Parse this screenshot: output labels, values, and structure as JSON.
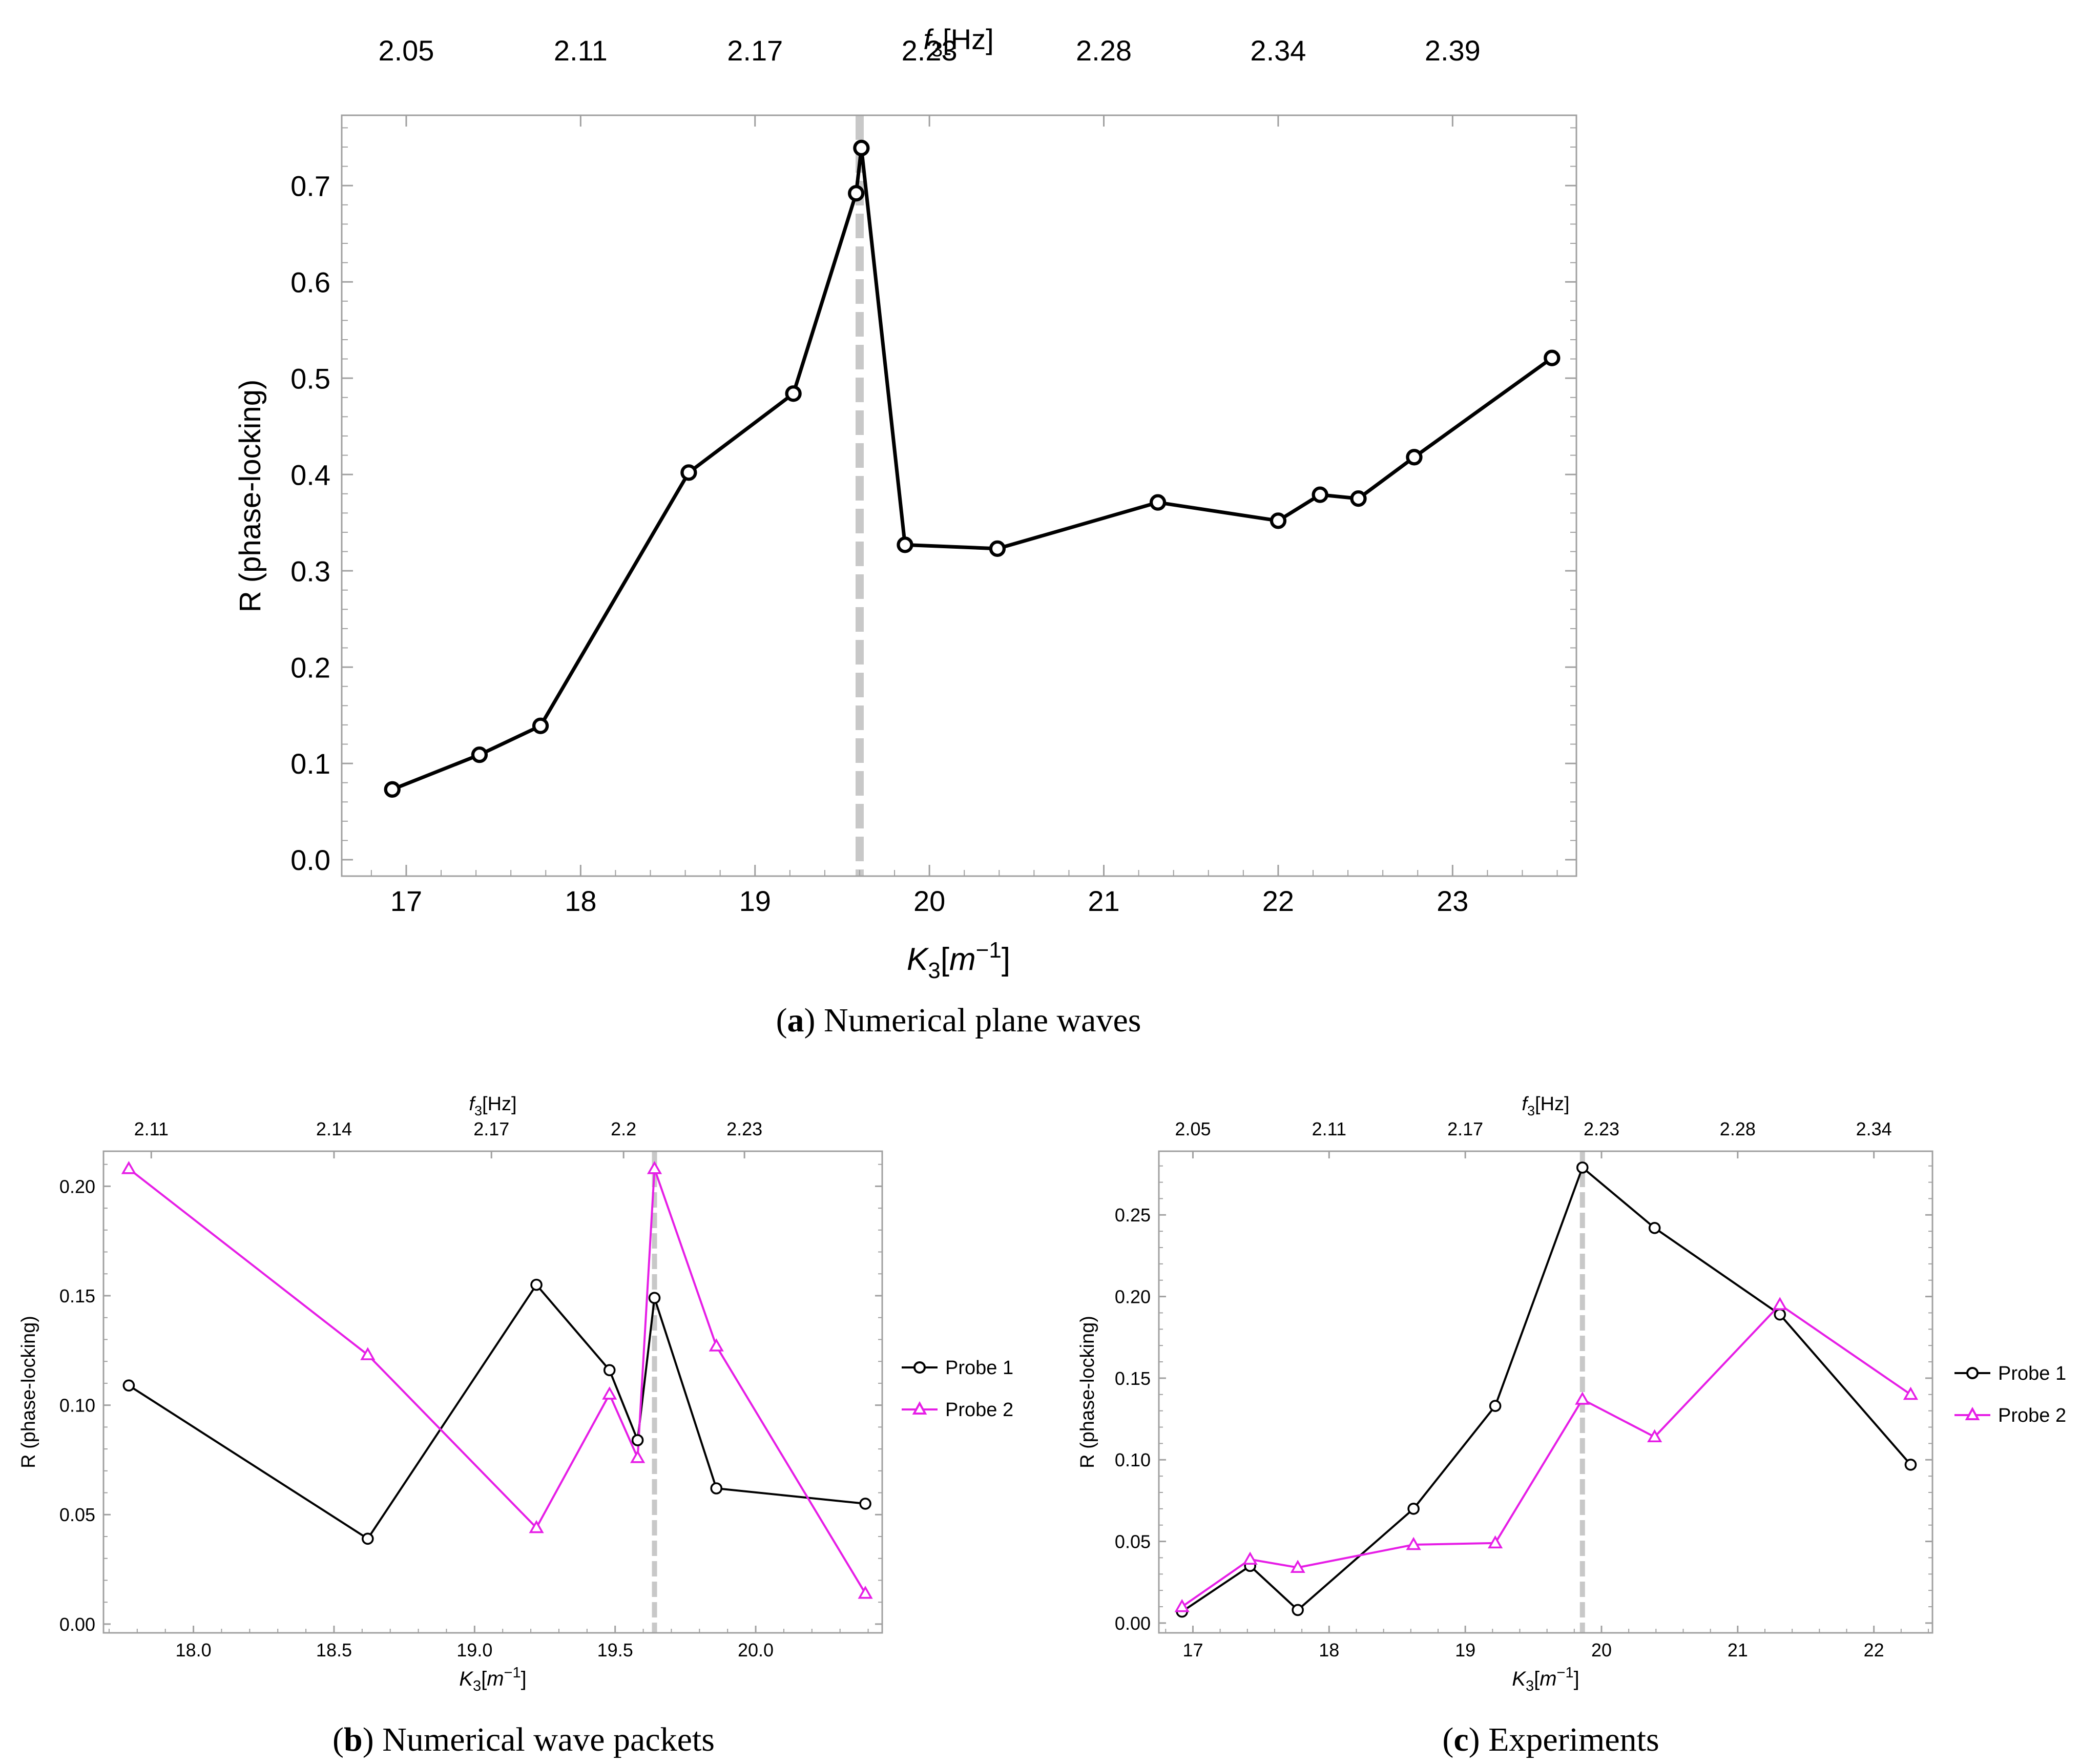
{
  "captions": {
    "a": {
      "letter": "a",
      "text": "Numerical plane waves"
    },
    "b": {
      "letter": "b",
      "text": "Numerical wave packets"
    },
    "c": {
      "letter": "c",
      "text": "Experiments"
    }
  },
  "chart_data": [
    {
      "id": "a",
      "type": "line",
      "xlabel": "K3[m-1]",
      "ylabel": "R (phase-locking)",
      "top_axis_label": "f3[Hz]",
      "xlim": [
        16.63,
        23.71
      ],
      "ylim": [
        -0.017,
        0.773
      ],
      "x_ticks": [
        17,
        18,
        19,
        20,
        21,
        22,
        23
      ],
      "x_tick_labels": [
        "17",
        "18",
        "19",
        "20",
        "21",
        "22",
        "23"
      ],
      "y_ticks": [
        0.0,
        0.1,
        0.2,
        0.3,
        0.4,
        0.5,
        0.6,
        0.7
      ],
      "y_tick_labels": [
        "0.0",
        "0.1",
        "0.2",
        "0.3",
        "0.4",
        "0.5",
        "0.6",
        "0.7"
      ],
      "top_ticks_at_x": [
        17.0,
        18.0,
        19.0,
        20.0,
        21.0,
        22.0,
        23.0
      ],
      "top_tick_labels": [
        "2.05",
        "2.11",
        "2.17",
        "2.23",
        "2.28",
        "2.34",
        "2.39"
      ],
      "vline_x": 19.6,
      "series": [
        {
          "name": "R",
          "color": "#000000",
          "marker": "circle",
          "x": [
            16.92,
            17.42,
            17.77,
            18.62,
            19.22,
            19.58,
            19.61,
            19.86,
            20.39,
            21.31,
            22.0,
            22.24,
            22.46,
            22.78,
            23.57
          ],
          "y": [
            0.073,
            0.109,
            0.139,
            0.402,
            0.484,
            0.692,
            0.739,
            0.327,
            0.323,
            0.371,
            0.352,
            0.379,
            0.375,
            0.418,
            0.521
          ]
        }
      ],
      "legend": null
    },
    {
      "id": "b",
      "type": "line",
      "xlabel": "K3[m-1]",
      "ylabel": "R (phase-locking)",
      "top_axis_label": "f3[Hz]",
      "xlim": [
        17.68,
        20.45
      ],
      "ylim": [
        -0.004,
        0.216
      ],
      "x_ticks": [
        18.0,
        18.5,
        19.0,
        19.5,
        20.0
      ],
      "x_tick_labels": [
        "18.0",
        "18.5",
        "19.0",
        "19.5",
        "20.0"
      ],
      "y_ticks": [
        0.0,
        0.05,
        0.1,
        0.15,
        0.2
      ],
      "y_tick_labels": [
        "0.00",
        "0.05",
        "0.10",
        "0.15",
        "0.20"
      ],
      "top_ticks_at_x": [
        17.85,
        18.5,
        19.06,
        19.53,
        19.96
      ],
      "top_tick_labels": [
        "2.11",
        "2.14",
        "2.17",
        "2.2",
        "2.23"
      ],
      "vline_x": 19.64,
      "series": [
        {
          "name": "Probe 1",
          "color": "#000000",
          "marker": "circle",
          "x": [
            17.77,
            18.62,
            19.22,
            19.48,
            19.58,
            19.64,
            19.86,
            20.39
          ],
          "y": [
            0.109,
            0.039,
            0.155,
            0.116,
            0.084,
            0.149,
            0.062,
            0.055
          ]
        },
        {
          "name": "Probe 2",
          "color": "#E61EE6",
          "marker": "triangle",
          "x": [
            17.77,
            18.62,
            19.22,
            19.48,
            19.58,
            19.64,
            19.86,
            20.39
          ],
          "y": [
            0.208,
            0.123,
            0.044,
            0.105,
            0.076,
            0.208,
            0.127,
            0.014
          ]
        }
      ],
      "legend": "right"
    },
    {
      "id": "c",
      "type": "line",
      "xlabel": "K3[m-1]",
      "ylabel": "R (phase-locking)",
      "top_axis_label": "f3[Hz]",
      "xlim": [
        16.75,
        22.43
      ],
      "ylim": [
        -0.006,
        0.289
      ],
      "x_ticks": [
        17,
        18,
        19,
        20,
        21,
        22
      ],
      "x_tick_labels": [
        "17",
        "18",
        "19",
        "20",
        "21",
        "22"
      ],
      "y_ticks": [
        0.0,
        0.05,
        0.1,
        0.15,
        0.2,
        0.25
      ],
      "y_tick_labels": [
        "0.00",
        "0.05",
        "0.10",
        "0.15",
        "0.20",
        "0.25"
      ],
      "top_ticks_at_x": [
        17.0,
        18.0,
        19.0,
        20.0,
        21.0,
        22.0
      ],
      "top_tick_labels": [
        "2.05",
        "2.11",
        "2.17",
        "2.23",
        "2.28",
        "2.34"
      ],
      "vline_x": 19.86,
      "series": [
        {
          "name": "Probe 1",
          "color": "#000000",
          "marker": "circle",
          "x": [
            16.92,
            17.42,
            17.77,
            18.62,
            19.22,
            19.86,
            20.39,
            21.31,
            22.27
          ],
          "y": [
            0.007,
            0.035,
            0.008,
            0.07,
            0.133,
            0.279,
            0.242,
            0.189,
            0.097
          ]
        },
        {
          "name": "Probe 2",
          "color": "#E61EE6",
          "marker": "triangle",
          "x": [
            16.92,
            17.42,
            17.77,
            18.62,
            19.22,
            19.86,
            20.39,
            21.31,
            22.27
          ],
          "y": [
            0.01,
            0.039,
            0.034,
            0.048,
            0.049,
            0.137,
            0.114,
            0.195,
            0.14
          ]
        }
      ],
      "legend": "right"
    }
  ]
}
